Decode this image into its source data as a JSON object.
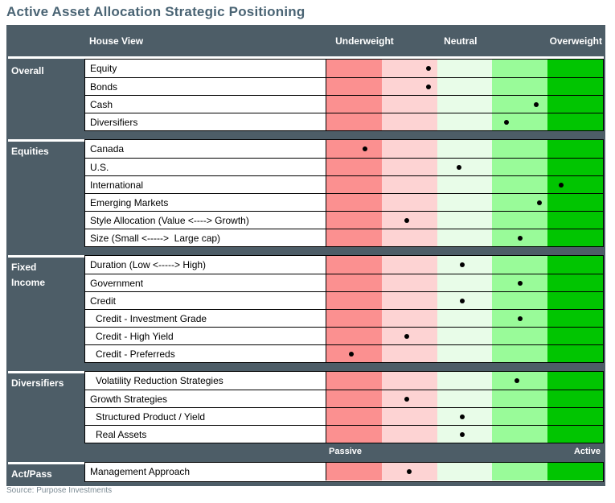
{
  "title": "Active Asset Allocation Strategic Positioning",
  "source_note": "Source: Purpose Investments",
  "header": {
    "house_view": "House View",
    "underweight": "Underweight",
    "neutral": "Neutral",
    "overweight": "Overweight"
  },
  "scale_bar": {
    "passive": "Passive",
    "active": "Active"
  },
  "colors": {
    "frame": "#4d5d67",
    "title_text": "#4a6474",
    "source_text": "#7b8a93",
    "dot": "#000000",
    "band_underweight_strong": "#fb9090",
    "band_underweight_light": "#fdd3d3",
    "band_neutral_light": "#e8fce8",
    "band_overweight_light": "#99fb99",
    "band_overweight_strong": "#01c501"
  },
  "chart_data": {
    "type": "heatmap",
    "description": "Strategic positioning dot chart: each row has one dot on a 5-band scale from Underweight (red) to Overweight (green); position is the fraction 0-1 across the scale.",
    "scale": {
      "min_label": "Underweight",
      "mid_label": "Neutral",
      "max_label": "Overweight",
      "bottom_left_label": "Passive",
      "bottom_right_label": "Active",
      "bands": 5,
      "range": [
        0,
        1
      ]
    },
    "groups": [
      {
        "name": "Overall",
        "rows": [
          {
            "label": "Equity",
            "indent": 0,
            "position": 0.37
          },
          {
            "label": "Bonds",
            "indent": 0,
            "position": 0.37
          },
          {
            "label": "Cash",
            "indent": 0,
            "position": 0.76
          },
          {
            "label": "Diversifiers",
            "indent": 0,
            "position": 0.65
          }
        ]
      },
      {
        "name": "Equities",
        "rows": [
          {
            "label": "Canada",
            "indent": 0,
            "position": 0.14
          },
          {
            "label": "U.S.",
            "indent": 0,
            "position": 0.48
          },
          {
            "label": "International",
            "indent": 0,
            "position": 0.85
          },
          {
            "label": "Emerging Markets",
            "indent": 0,
            "position": 0.77
          },
          {
            "label": "Style Allocation (Value <----> Growth)",
            "indent": 0,
            "position": 0.29
          },
          {
            "label": "Size (Small <----->  Large cap)",
            "indent": 0,
            "position": 0.7
          }
        ]
      },
      {
        "name": "Fixed Income",
        "wrap": true,
        "rows": [
          {
            "label": "Duration (Low <-----> High)",
            "indent": 0,
            "position": 0.49
          },
          {
            "label": "Government",
            "indent": 0,
            "position": 0.7
          },
          {
            "label": "Credit",
            "indent": 0,
            "position": 0.49
          },
          {
            "label": "Credit - Investment Grade",
            "indent": 1,
            "position": 0.7
          },
          {
            "label": "Credit - High Yield",
            "indent": 1,
            "position": 0.29
          },
          {
            "label": "Credit - Preferreds",
            "indent": 1,
            "position": 0.09
          }
        ]
      },
      {
        "name": "Diversifiers",
        "rows": [
          {
            "label": "Volatility Reduction Strategies",
            "indent": 1,
            "position": 0.69
          },
          {
            "label": "Growth Strategies",
            "indent": 0,
            "position": 0.29
          },
          {
            "label": "Structured Product / Yield",
            "indent": 1,
            "position": 0.49
          },
          {
            "label": "Real Assets",
            "indent": 1,
            "position": 0.49
          }
        ]
      },
      {
        "name": "Act/Pass",
        "rows": [
          {
            "label": "Management Approach",
            "indent": 0,
            "position": 0.3
          }
        ]
      }
    ]
  }
}
